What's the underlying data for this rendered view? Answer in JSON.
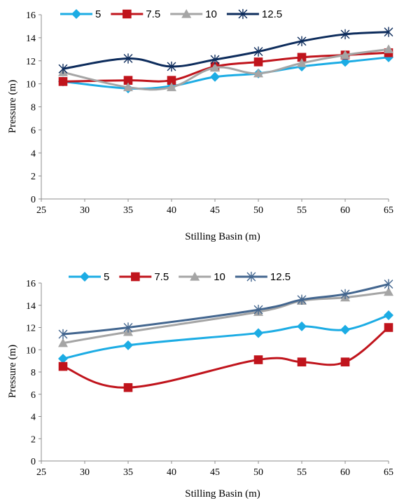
{
  "chart_data": [
    {
      "type": "line",
      "title": "",
      "xlabel": "Stilling Basin (m)",
      "ylabel": "Pressure (m)",
      "xlim": [
        25,
        65
      ],
      "ylim": [
        0,
        16
      ],
      "xticks": [
        "25",
        "30",
        "35",
        "40",
        "45",
        "50",
        "55",
        "60",
        "65"
      ],
      "yticks": [
        "0",
        "2",
        "4",
        "6",
        "8",
        "10",
        "12",
        "14",
        "16"
      ],
      "grid": false,
      "legend": "top",
      "series": [
        {
          "name": "5",
          "color": "#1cace4",
          "marker": "diamond",
          "x": [
            27.5,
            35,
            40,
            45,
            50,
            55,
            60,
            65
          ],
          "y": [
            10.2,
            9.6,
            9.8,
            10.6,
            10.9,
            11.5,
            11.9,
            12.3
          ]
        },
        {
          "name": "7.5",
          "color": "#c0141c",
          "marker": "square",
          "x": [
            27.5,
            35,
            40,
            45,
            50,
            55,
            60,
            65
          ],
          "y": [
            10.2,
            10.3,
            10.3,
            11.5,
            11.9,
            12.3,
            12.5,
            12.7
          ]
        },
        {
          "name": "10",
          "color": "#a5a5a5",
          "marker": "triangle",
          "x": [
            27.5,
            35,
            40,
            45,
            50,
            55,
            60,
            65
          ],
          "y": [
            11.0,
            9.7,
            9.7,
            11.4,
            10.9,
            11.8,
            12.5,
            13.0
          ]
        },
        {
          "name": "12.5",
          "color": "#0d2c5c",
          "marker": "star",
          "x": [
            27.5,
            35,
            40,
            45,
            50,
            55,
            60,
            65
          ],
          "y": [
            11.3,
            12.2,
            11.5,
            12.1,
            12.8,
            13.7,
            14.3,
            14.5
          ]
        }
      ]
    },
    {
      "type": "line",
      "title": "",
      "xlabel": "Stilling Basin (m)",
      "ylabel": "Pressure (m)",
      "xlim": [
        25,
        65
      ],
      "ylim": [
        0,
        16
      ],
      "xticks": [
        "25",
        "30",
        "35",
        "40",
        "45",
        "50",
        "55",
        "60",
        "65"
      ],
      "yticks": [
        "0",
        "2",
        "4",
        "6",
        "8",
        "10",
        "12",
        "14",
        "16"
      ],
      "grid": false,
      "legend": "top",
      "series": [
        {
          "name": "5",
          "color": "#1cace4",
          "marker": "diamond",
          "x": [
            27.5,
            35,
            50,
            55,
            60,
            65
          ],
          "y": [
            9.2,
            10.4,
            11.5,
            12.1,
            11.8,
            13.1
          ]
        },
        {
          "name": "7.5",
          "color": "#c0141c",
          "marker": "square",
          "x": [
            27.5,
            35,
            50,
            55,
            60,
            65
          ],
          "y": [
            8.5,
            6.6,
            9.1,
            8.9,
            8.9,
            12.0
          ]
        },
        {
          "name": "10",
          "color": "#a5a5a5",
          "marker": "triangle",
          "x": [
            27.5,
            35,
            50,
            55,
            60,
            65
          ],
          "y": [
            10.6,
            11.6,
            13.4,
            14.4,
            14.7,
            15.2
          ]
        },
        {
          "name": "12.5",
          "color": "#43668f",
          "marker": "star",
          "x": [
            27.5,
            35,
            50,
            55,
            60,
            65
          ],
          "y": [
            11.4,
            12.0,
            13.6,
            14.5,
            15.0,
            15.9
          ]
        }
      ]
    }
  ]
}
